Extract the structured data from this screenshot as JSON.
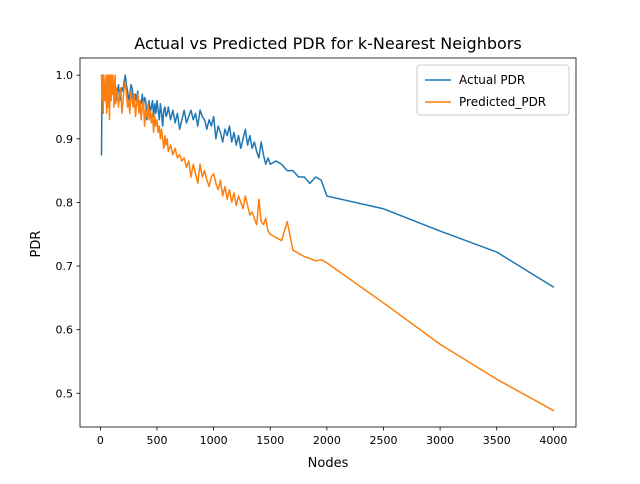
{
  "chart_data": {
    "type": "line",
    "title": "Actual vs Predicted PDR for k-Nearest Neighbors",
    "xlabel": "Nodes",
    "ylabel": "PDR",
    "xlim": [
      -180,
      4200
    ],
    "ylim": [
      0.447,
      1.027
    ],
    "xticks": [
      0,
      500,
      1000,
      1500,
      2000,
      2500,
      3000,
      3500,
      4000
    ],
    "xtick_labels": [
      "0",
      "500",
      "1000",
      "1500",
      "2000",
      "2500",
      "3000",
      "3500",
      "4000"
    ],
    "yticks": [
      0.5,
      0.6,
      0.7,
      0.8,
      0.9,
      1.0
    ],
    "ytick_labels": [
      "0.5",
      "0.6",
      "0.7",
      "0.8",
      "0.9",
      "1.0"
    ],
    "grid": false,
    "legend_position": "top-right",
    "series": [
      {
        "name": "Actual PDR",
        "color": "#1f77b4",
        "x": [
          10,
          15,
          20,
          25,
          30,
          40,
          50,
          60,
          70,
          80,
          90,
          100,
          110,
          120,
          130,
          140,
          150,
          160,
          170,
          180,
          190,
          200,
          210,
          220,
          230,
          240,
          250,
          260,
          270,
          280,
          290,
          300,
          310,
          320,
          330,
          340,
          350,
          360,
          370,
          380,
          390,
          400,
          410,
          420,
          430,
          440,
          450,
          460,
          470,
          480,
          490,
          500,
          510,
          520,
          530,
          540,
          550,
          560,
          570,
          580,
          590,
          600,
          620,
          640,
          660,
          680,
          700,
          720,
          740,
          760,
          780,
          800,
          820,
          840,
          860,
          880,
          900,
          920,
          940,
          960,
          980,
          1000,
          1020,
          1040,
          1060,
          1080,
          1100,
          1120,
          1140,
          1160,
          1180,
          1200,
          1220,
          1240,
          1260,
          1280,
          1300,
          1320,
          1340,
          1360,
          1380,
          1400,
          1420,
          1440,
          1460,
          1480,
          1500,
          1550,
          1600,
          1650,
          1700,
          1750,
          1800,
          1850,
          1900,
          1950,
          2000,
          2500,
          3000,
          3500,
          4000
        ],
        "values": [
          0.875,
          1.0,
          0.985,
          0.995,
          0.99,
          0.975,
          0.985,
          0.98,
          0.99,
          0.975,
          0.995,
          0.985,
          0.97,
          0.98,
          0.965,
          0.96,
          0.975,
          0.985,
          0.96,
          0.97,
          0.98,
          0.975,
          0.99,
          1.0,
          0.985,
          0.975,
          0.96,
          0.97,
          0.985,
          0.98,
          0.965,
          0.95,
          0.97,
          0.96,
          0.975,
          0.945,
          0.96,
          0.955,
          0.97,
          0.95,
          0.965,
          0.96,
          0.93,
          0.95,
          0.96,
          0.94,
          0.95,
          0.96,
          0.935,
          0.955,
          0.94,
          0.96,
          0.945,
          0.93,
          0.955,
          0.94,
          0.92,
          0.945,
          0.95,
          0.935,
          0.94,
          0.95,
          0.93,
          0.945,
          0.925,
          0.94,
          0.915,
          0.93,
          0.945,
          0.925,
          0.935,
          0.945,
          0.93,
          0.94,
          0.92,
          0.945,
          0.935,
          0.93,
          0.915,
          0.93,
          0.92,
          0.935,
          0.9,
          0.92,
          0.91,
          0.895,
          0.915,
          0.905,
          0.92,
          0.895,
          0.91,
          0.89,
          0.905,
          0.885,
          0.9,
          0.915,
          0.89,
          0.905,
          0.885,
          0.895,
          0.88,
          0.87,
          0.895,
          0.875,
          0.86,
          0.87,
          0.86,
          0.865,
          0.86,
          0.85,
          0.85,
          0.84,
          0.84,
          0.83,
          0.84,
          0.835,
          0.81,
          0.79,
          0.755,
          0.722,
          0.667
        ]
      },
      {
        "name": "Predicted_PDR",
        "color": "#ff7f0e",
        "x": [
          10,
          15,
          20,
          25,
          30,
          40,
          45,
          50,
          55,
          60,
          65,
          70,
          75,
          80,
          85,
          90,
          95,
          100,
          105,
          110,
          115,
          120,
          125,
          130,
          135,
          140,
          150,
          160,
          170,
          180,
          190,
          200,
          210,
          220,
          230,
          240,
          250,
          260,
          270,
          280,
          290,
          300,
          310,
          320,
          330,
          340,
          350,
          360,
          370,
          380,
          390,
          400,
          410,
          420,
          430,
          440,
          450,
          460,
          470,
          480,
          490,
          500,
          510,
          520,
          530,
          540,
          550,
          560,
          570,
          580,
          590,
          600,
          620,
          640,
          660,
          680,
          700,
          720,
          740,
          760,
          780,
          800,
          820,
          840,
          860,
          880,
          900,
          920,
          940,
          960,
          980,
          1000,
          1020,
          1040,
          1060,
          1080,
          1100,
          1120,
          1140,
          1160,
          1180,
          1200,
          1220,
          1240,
          1260,
          1280,
          1300,
          1320,
          1340,
          1360,
          1380,
          1400,
          1420,
          1440,
          1460,
          1480,
          1500,
          1550,
          1600,
          1650,
          1700,
          1750,
          1800,
          1850,
          1900,
          1950,
          2000,
          2500,
          3000,
          3500,
          4000
        ],
        "values": [
          1.0,
          0.96,
          1.0,
          0.94,
          1.0,
          0.96,
          0.98,
          1.0,
          0.94,
          0.96,
          1.0,
          0.95,
          1.0,
          0.93,
          0.975,
          1.0,
          0.96,
          1.0,
          0.97,
          1.0,
          0.98,
          0.95,
          0.985,
          1.0,
          0.955,
          0.98,
          0.97,
          0.95,
          0.97,
          0.98,
          0.94,
          0.96,
          0.98,
          0.99,
          0.97,
          0.95,
          0.96,
          0.94,
          0.975,
          0.96,
          0.95,
          0.97,
          0.935,
          0.955,
          0.97,
          0.94,
          0.96,
          0.93,
          0.95,
          0.96,
          0.92,
          0.945,
          0.935,
          0.955,
          0.93,
          0.945,
          0.925,
          0.94,
          0.91,
          0.935,
          0.92,
          0.93,
          0.91,
          0.92,
          0.9,
          0.915,
          0.9,
          0.885,
          0.905,
          0.89,
          0.9,
          0.88,
          0.89,
          0.875,
          0.885,
          0.87,
          0.875,
          0.865,
          0.87,
          0.855,
          0.865,
          0.84,
          0.86,
          0.845,
          0.83,
          0.86,
          0.84,
          0.85,
          0.835,
          0.825,
          0.84,
          0.845,
          0.83,
          0.82,
          0.835,
          0.81,
          0.825,
          0.805,
          0.82,
          0.8,
          0.815,
          0.795,
          0.81,
          0.8,
          0.79,
          0.81,
          0.795,
          0.78,
          0.785,
          0.775,
          0.765,
          0.805,
          0.77,
          0.765,
          0.775,
          0.755,
          0.75,
          0.745,
          0.74,
          0.77,
          0.725,
          0.72,
          0.715,
          0.712,
          0.708,
          0.71,
          0.705,
          0.642,
          0.577,
          0.522,
          0.473
        ]
      }
    ]
  }
}
